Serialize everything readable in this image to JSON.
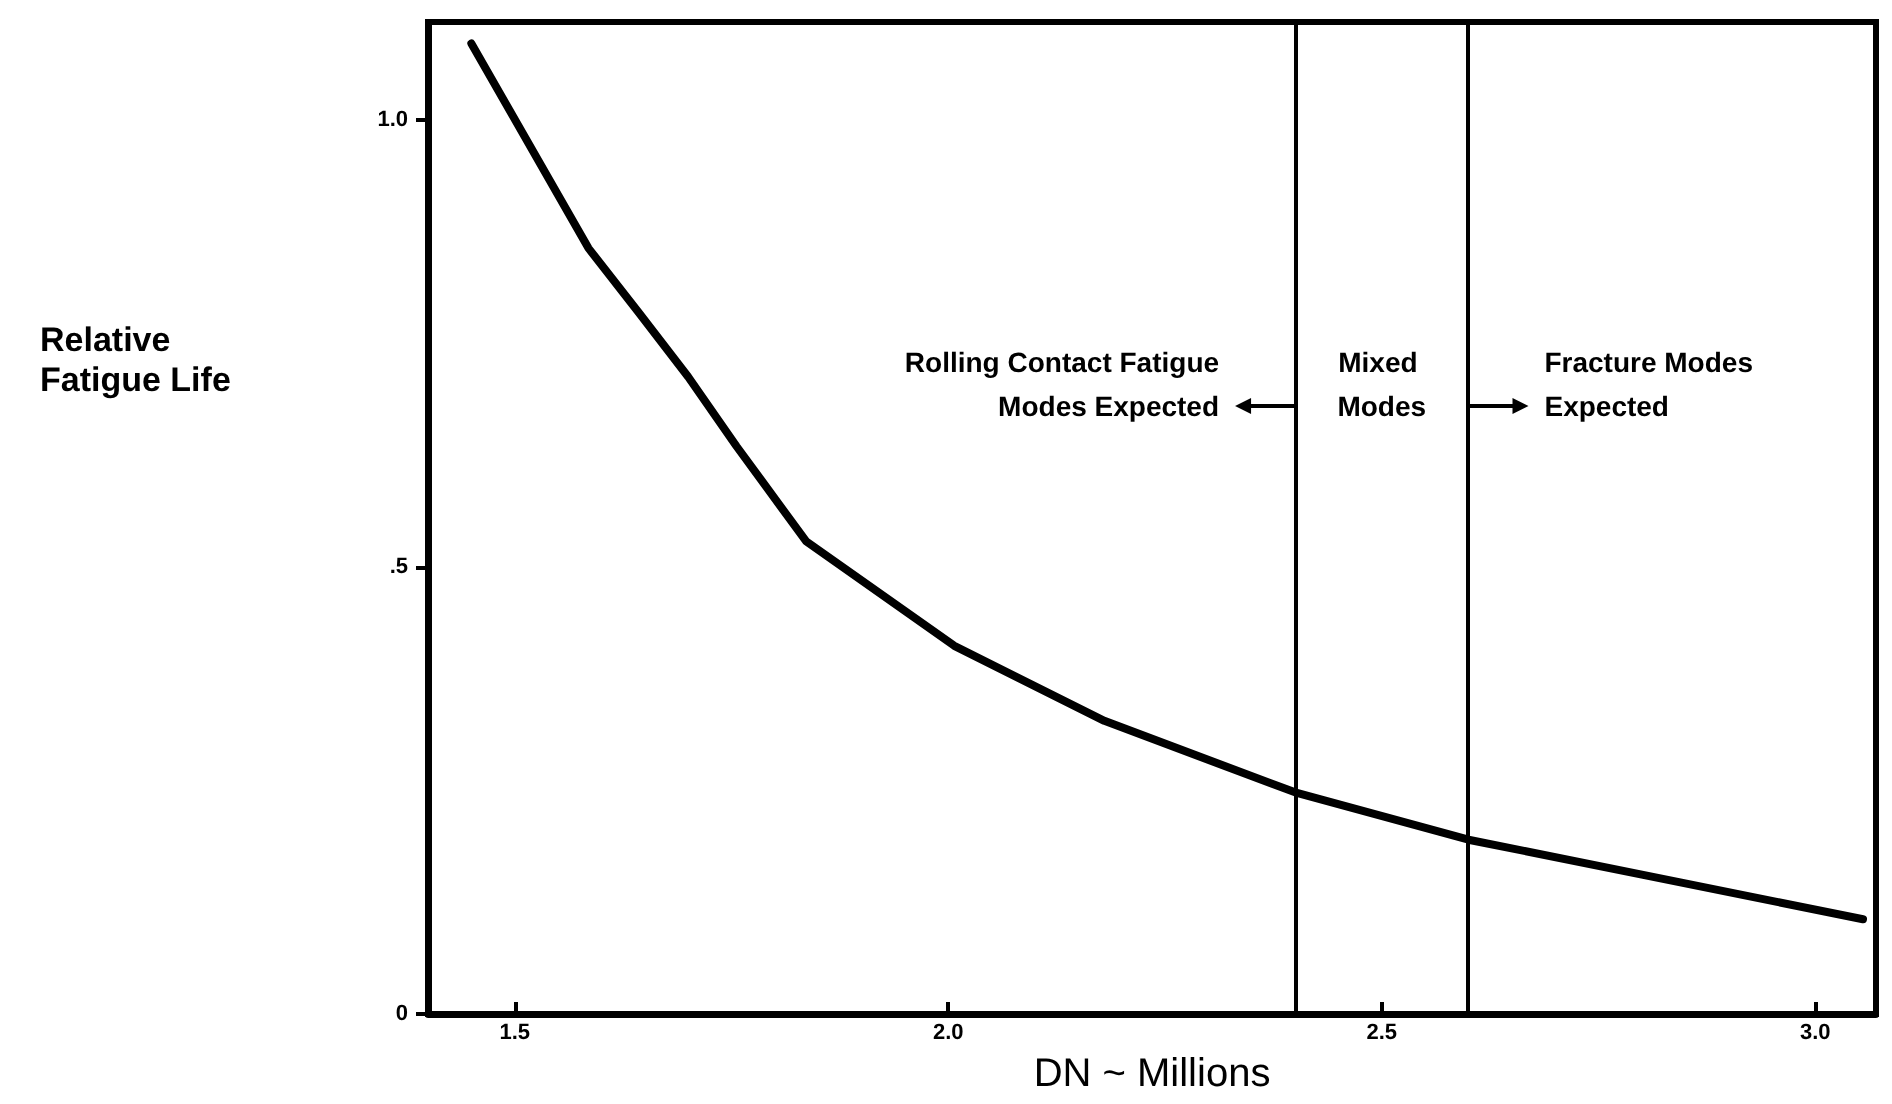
{
  "chart_data": {
    "type": "line",
    "xlabel": "DN ~ Millions",
    "ylabel": "Relative Fatigue Life",
    "x": [
      1.45,
      1.585,
      1.643,
      1.7,
      1.756,
      1.836,
      2.007,
      2.18,
      2.4,
      2.6,
      2.8,
      3.055
    ],
    "series": [
      {
        "color": "#000000",
        "values": [
          1.086,
          0.857,
          0.785,
          0.713,
          0.635,
          0.529,
          0.412,
          0.328,
          0.248,
          0.195,
          0.156,
          0.106
        ]
      }
    ],
    "xlim": [
      1.4,
      3.07
    ],
    "ylim": [
      0,
      1.11
    ],
    "xticks": [
      {
        "value": 1.5,
        "label": "1.5"
      },
      {
        "value": 2.0,
        "label": "2.0"
      },
      {
        "value": 2.5,
        "label": "2.5"
      },
      {
        "value": 3.0,
        "label": "3.0"
      }
    ],
    "yticks": [
      0,
      {
        "value": 0.5,
        "label": ".5"
      },
      {
        "value": 1.0,
        "label": "1.0"
      }
    ],
    "ref_lines": [
      {
        "axis": "x",
        "value": 2.4,
        "color": "#000000"
      },
      {
        "axis": "x",
        "value": 2.6,
        "color": "#000000"
      }
    ],
    "annotations": [
      "Rolling Contact Fatigue Modes Expected",
      "Mixed Modes",
      "Fracture Modes Expected"
    ],
    "grid": false,
    "marker": "none",
    "line_style": "solid"
  }
}
